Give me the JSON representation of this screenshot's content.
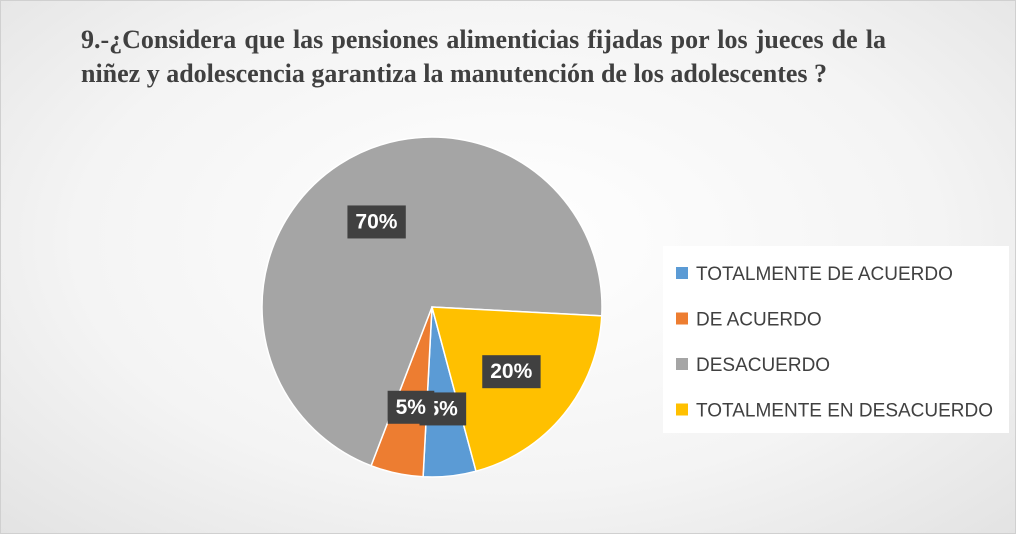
{
  "chart_data": {
    "type": "pie",
    "title": "9.-¿Considera que las pensiones alimenticias fijadas por los jueces de la niñez y adolescencia garantiza la manutención de los adolescentes ?",
    "categories": [
      "TOTALMENTE DE ACUERDO",
      "DE ACUERDO",
      "DESACUERDO",
      "TOTALMENTE EN DESACUERDO"
    ],
    "values": [
      5,
      5,
      70,
      20
    ],
    "value_labels": [
      "5%",
      "5%",
      "70%",
      "20%"
    ],
    "colors": [
      "#5b9bd5",
      "#ed7d31",
      "#a5a5a5",
      "#ffc000"
    ],
    "legend": "right"
  }
}
